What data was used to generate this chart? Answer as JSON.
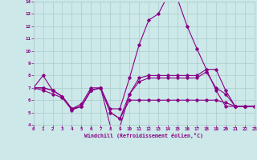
{
  "background_color": "#cce8e8",
  "grid_color": "#aacccc",
  "line_color": "#880088",
  "xlabel": "Windchill (Refroidissement éolien,°C)",
  "xlabel_color": "#880088",
  "tick_color": "#880088",
  "ylim": [
    4,
    14
  ],
  "xlim": [
    0,
    23
  ],
  "yticks": [
    4,
    5,
    6,
    7,
    8,
    9,
    10,
    11,
    12,
    13,
    14
  ],
  "xticks": [
    0,
    1,
    2,
    3,
    4,
    5,
    6,
    7,
    8,
    9,
    10,
    11,
    12,
    13,
    14,
    15,
    16,
    17,
    18,
    19,
    20,
    21,
    22,
    23
  ],
  "line1_x": [
    0,
    1,
    2,
    3,
    4,
    5,
    6,
    7,
    8,
    9,
    10,
    11,
    12,
    13,
    14,
    15,
    16,
    17,
    18,
    19,
    20,
    21,
    22,
    23
  ],
  "line1_y": [
    7.0,
    8.0,
    6.8,
    6.3,
    5.3,
    5.7,
    7.0,
    7.0,
    5.3,
    5.3,
    7.8,
    10.5,
    12.5,
    13.0,
    14.5,
    14.2,
    12.0,
    10.2,
    8.5,
    8.5,
    6.8,
    5.5,
    5.5,
    5.5
  ],
  "line2_x": [
    0,
    1,
    2,
    3,
    4,
    5,
    6,
    7,
    8,
    9,
    10,
    11,
    12,
    13,
    14,
    15,
    16,
    17,
    18,
    19,
    20,
    21,
    22,
    23
  ],
  "line2_y": [
    7.0,
    6.8,
    6.5,
    6.2,
    5.2,
    5.5,
    6.8,
    7.0,
    3.9,
    3.8,
    6.5,
    7.8,
    8.0,
    8.0,
    8.0,
    8.0,
    8.0,
    8.0,
    8.5,
    6.8,
    5.5,
    5.5,
    5.5,
    5.5
  ],
  "line3_x": [
    0,
    1,
    2,
    3,
    4,
    5,
    6,
    7,
    8,
    9,
    10,
    11,
    12,
    13,
    14,
    15,
    16,
    17,
    18,
    19,
    20,
    21,
    22,
    23
  ],
  "line3_y": [
    7.0,
    7.0,
    6.8,
    6.3,
    5.3,
    5.5,
    6.8,
    7.0,
    5.0,
    4.5,
    6.5,
    7.5,
    7.8,
    7.8,
    7.8,
    7.8,
    7.8,
    7.8,
    8.3,
    7.0,
    6.5,
    5.5,
    5.5,
    5.5
  ],
  "line4_x": [
    0,
    1,
    2,
    3,
    4,
    5,
    6,
    7,
    8,
    9,
    10,
    11,
    12,
    13,
    14,
    15,
    16,
    17,
    18,
    19,
    20,
    21,
    22,
    23
  ],
  "line4_y": [
    7.0,
    7.0,
    6.8,
    6.3,
    5.3,
    5.5,
    6.8,
    7.0,
    5.0,
    4.5,
    6.0,
    6.0,
    6.0,
    6.0,
    6.0,
    6.0,
    6.0,
    6.0,
    6.0,
    6.0,
    5.8,
    5.5,
    5.5,
    5.5
  ]
}
